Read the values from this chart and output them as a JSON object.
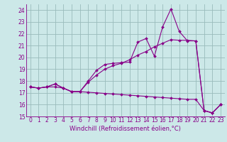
{
  "bg_color": "#cce8e8",
  "grid_color": "#99bbbb",
  "line_color": "#880088",
  "xlim_min": -0.5,
  "xlim_max": 23.5,
  "ylim_min": 15,
  "ylim_max": 24.5,
  "yticks": [
    15,
    16,
    17,
    18,
    19,
    20,
    21,
    22,
    23,
    24
  ],
  "xticks": [
    0,
    1,
    2,
    3,
    4,
    5,
    6,
    7,
    8,
    9,
    10,
    11,
    12,
    13,
    14,
    15,
    16,
    17,
    18,
    19,
    20,
    21,
    22,
    23
  ],
  "xlabel": "Windchill (Refroidissement éolien,°C)",
  "s1_x": [
    0,
    1,
    2,
    3,
    4,
    5,
    6,
    7,
    8,
    9,
    10,
    11,
    12,
    13,
    14,
    15,
    16,
    17,
    18,
    19,
    20,
    21,
    22,
    23
  ],
  "s1_y": [
    17.5,
    17.4,
    17.5,
    17.5,
    17.4,
    17.1,
    17.1,
    17.05,
    17.0,
    16.95,
    16.9,
    16.85,
    16.8,
    16.75,
    16.7,
    16.65,
    16.6,
    16.55,
    16.5,
    16.45,
    16.45,
    15.5,
    15.3,
    16.0
  ],
  "s2_x": [
    0,
    1,
    2,
    3,
    4,
    5,
    6,
    7,
    8,
    9,
    10,
    11,
    12,
    13,
    14,
    15,
    16,
    17,
    18,
    19,
    20,
    21,
    22,
    23
  ],
  "s2_y": [
    17.5,
    17.4,
    17.5,
    17.75,
    17.4,
    17.1,
    17.1,
    18.0,
    18.9,
    19.4,
    19.5,
    19.55,
    19.6,
    21.3,
    21.6,
    20.1,
    22.6,
    24.1,
    22.2,
    21.4,
    21.4,
    15.5,
    15.3,
    16.0
  ],
  "s3_x": [
    0,
    1,
    2,
    3,
    4,
    5,
    6,
    7,
    8,
    9,
    10,
    11,
    12,
    13,
    14,
    15,
    16,
    17,
    18,
    19,
    20,
    21,
    22,
    23
  ],
  "s3_y": [
    17.5,
    17.4,
    17.5,
    17.75,
    17.4,
    17.1,
    17.1,
    17.9,
    18.5,
    19.0,
    19.3,
    19.5,
    19.8,
    20.2,
    20.5,
    20.9,
    21.2,
    21.5,
    21.45,
    21.45,
    21.4,
    15.5,
    15.3,
    16.0
  ],
  "tick_labelsize": 5.5,
  "xlabel_fontsize": 6.0,
  "lw": 0.8,
  "ms": 2.0
}
